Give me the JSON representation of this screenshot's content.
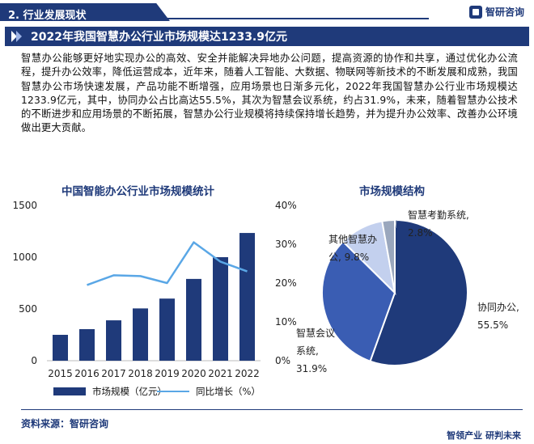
{
  "header": {
    "section_label": "2. 行业发展现状",
    "brand": "智研咨询"
  },
  "banner": {
    "title": "2022年我国智慧办公行业市场规模达1233.9亿元"
  },
  "paragraph": "智慧办公能够更好地实现办公的高效、安全并能解决异地办公问题，提高资源的协作和共享，通过优化办公流程，提升办公效率，降低运营成本，近年来，随着人工智能、大数据、物联网等新技术的不断发展和成熟，我国智慧办公市场快速发展，产品功能不断增强，应用场景也日渐多元化，2022年我国智慧办公行业市场规模达1233.9亿元，其中，协同办公占比高达55.5%，其次为智慧会议系统，约占31.9%，未来，随着智慧办公技术的不断进步和应用场景的不断拓展，智慧办公行业规模将持续保持增长趋势，并为提升办公效率、改善办公环境做出更大贡献。",
  "footer": {
    "source": "资料来源：智研咨询",
    "slogan": "智领产业 研判未来"
  },
  "colors": {
    "brand": "#1f3a7a",
    "bar": "#1f3a7a",
    "line": "#5aa7e6"
  },
  "chart_data": [
    {
      "type": "bar",
      "title": "中国智能办公行业市场规模统计",
      "categories": [
        "2015",
        "2016",
        "2017",
        "2018",
        "2019",
        "2020",
        "2021",
        "2022"
      ],
      "series": [
        {
          "name": "市场规模（亿元）",
          "type": "bar",
          "axis": "left",
          "values": [
            250,
            305,
            390,
            505,
            600,
            790,
            1000,
            1233.9
          ]
        },
        {
          "name": "同比增长（%）",
          "type": "line",
          "axis": "right",
          "values": [
            18.5,
            19.5,
            22.0,
            21.8,
            20.0,
            30.5,
            25.5,
            23.0
          ]
        }
      ],
      "y_left": {
        "ticks": [
          "0",
          "500",
          "1000",
          "1500"
        ],
        "ylim": [
          0,
          1500
        ]
      },
      "y_right": {
        "ticks": [
          "0%",
          "10%",
          "20%",
          "30%",
          "40%"
        ],
        "ylim": [
          0,
          40
        ]
      },
      "legend_position": "bottom",
      "grid": false
    },
    {
      "type": "pie",
      "title": "市场规模结构",
      "style": "donut",
      "slices": [
        {
          "name": "协同办公",
          "value": 55.5,
          "label_lines": [
            "协同办公,",
            "55.5%"
          ],
          "color": "#1f3a7a"
        },
        {
          "name": "智慧会议系统",
          "value": 31.9,
          "label_lines": [
            "智慧会议",
            "系统,",
            "31.9%"
          ],
          "color": "#3a5db3"
        },
        {
          "name": "其他智慧办公",
          "value": 9.8,
          "label_lines": [
            "其他智慧办",
            "公, 9.8%"
          ],
          "color": "#c3d0ee"
        },
        {
          "name": "智慧考勤系统",
          "value": 2.8,
          "label_lines": [
            "智慧考勤系统,",
            "2.8%"
          ],
          "color": "#9aa7bd"
        }
      ]
    }
  ]
}
